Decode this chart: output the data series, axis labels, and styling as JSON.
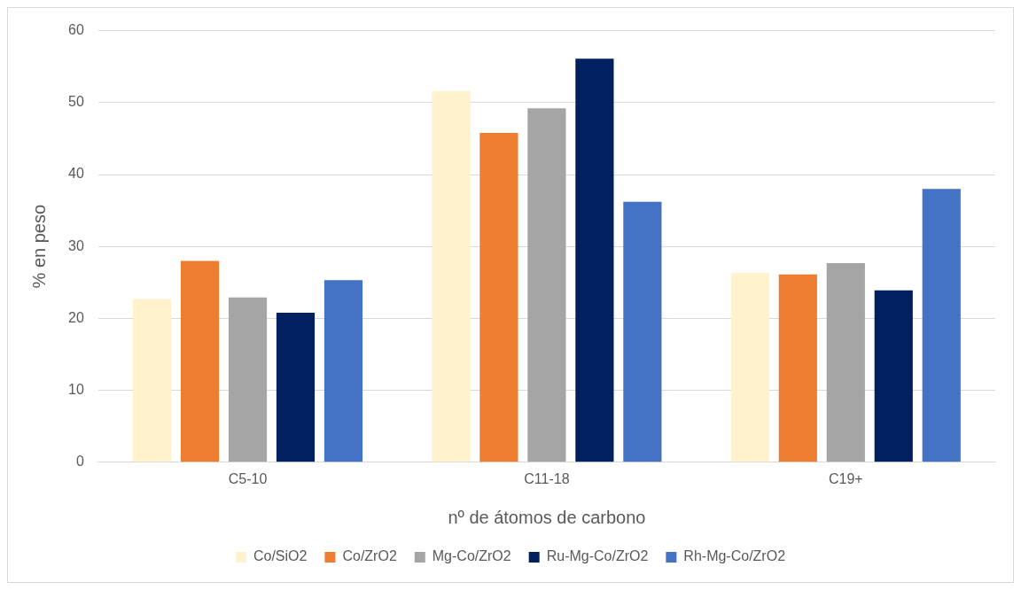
{
  "chart_data": {
    "type": "bar",
    "xlabel": "nº de átomos de carbono",
    "ylabel": "% en peso",
    "categories": [
      "C5-10",
      "C11-18",
      "C19+"
    ],
    "series": [
      {
        "name": "Co/SiO2",
        "color": "#fff2cc",
        "values": [
          22.7,
          51.6,
          26.3
        ]
      },
      {
        "name": "Co/ZrO2",
        "color": "#ed7d31",
        "values": [
          28.0,
          45.8,
          26.1
        ]
      },
      {
        "name": "Mg-Co/ZrO2",
        "color": "#a5a5a5",
        "values": [
          22.9,
          49.2,
          27.7
        ]
      },
      {
        "name": "Ru-Mg-Co/ZrO2",
        "color": "#002060",
        "values": [
          20.8,
          56.1,
          23.9
        ]
      },
      {
        "name": "Rh-Mg-Co/ZrO2",
        "color": "#4472c4",
        "values": [
          25.3,
          36.2,
          38.0
        ]
      }
    ],
    "ylim": [
      0,
      60
    ],
    "yticks": [
      0,
      10,
      20,
      30,
      40,
      50,
      60
    ],
    "grid": "y",
    "legend": "bottom"
  }
}
